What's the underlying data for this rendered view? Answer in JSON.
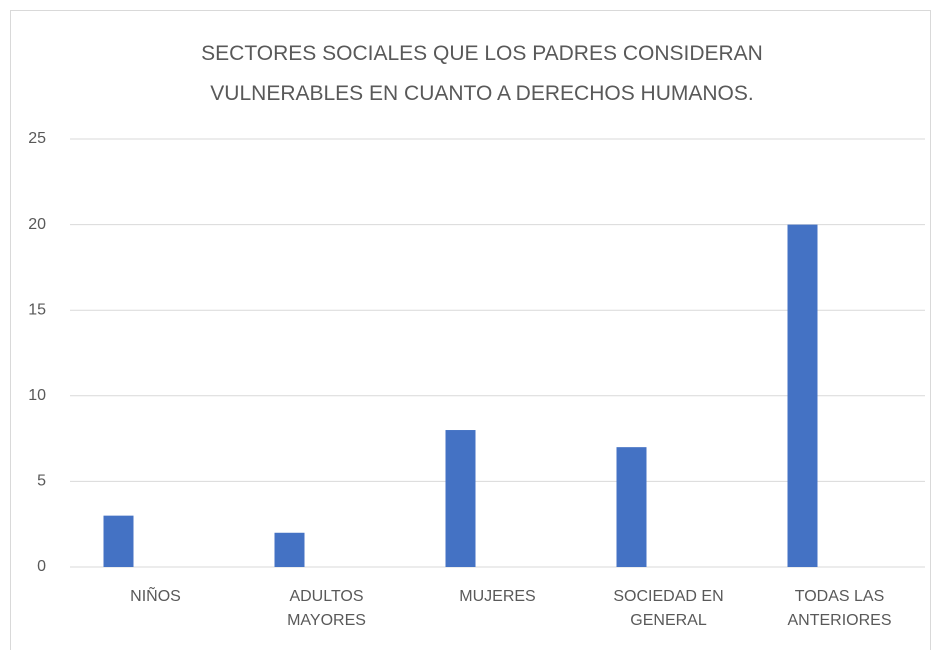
{
  "chart_data": {
    "type": "bar",
    "title": "SECTORES SOCIALES QUE LOS PADRES CONSIDERAN VULNERABLES EN CUANTO A DERECHOS HUMANOS.",
    "categories": [
      "NIÑOS",
      "ADULTOS MAYORES",
      "MUJERES",
      "SOCIEDAD EN GENERAL",
      "TODAS LAS ANTERIORES"
    ],
    "values": [
      3,
      2,
      8,
      7,
      20
    ],
    "color": "#4472c4",
    "ylim": [
      0,
      25
    ],
    "yticks": [
      0,
      5,
      10,
      15,
      20,
      25
    ],
    "grid": true
  }
}
